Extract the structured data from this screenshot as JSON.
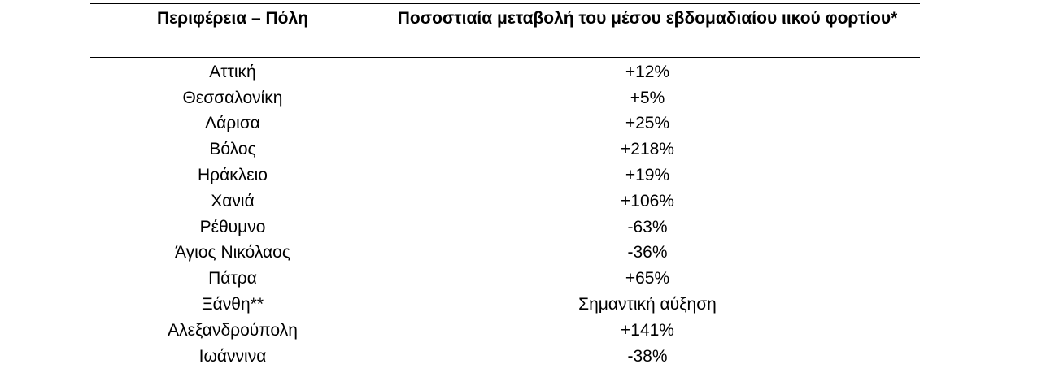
{
  "table": {
    "headers": {
      "region": "Περιφέρεια – Πόλη",
      "change": "Ποσοστιαία μεταβολή του μέσου εβδομαδιαίου ιικού φορτίου*"
    },
    "rows": [
      {
        "region": "Αττική",
        "change": "+12%"
      },
      {
        "region": "Θεσσαλονίκη",
        "change": "+5%"
      },
      {
        "region": "Λάρισα",
        "change": "+25%"
      },
      {
        "region": "Βόλος",
        "change": "+218%"
      },
      {
        "region": "Ηράκλειο",
        "change": "+19%"
      },
      {
        "region": "Χανιά",
        "change": "+106%"
      },
      {
        "region": "Ρέθυμνο",
        "change": "-63%"
      },
      {
        "region": "Άγιος Νικόλαος",
        "change": "-36%"
      },
      {
        "region": "Πάτρα",
        "change": "+65%"
      },
      {
        "region": "Ξάνθη**",
        "change": "Σημαντική αύξηση"
      },
      {
        "region": "Αλεξανδρούπολη",
        "change": "+141%"
      },
      {
        "region": "Ιωάννινα",
        "change": "-38%"
      }
    ]
  }
}
